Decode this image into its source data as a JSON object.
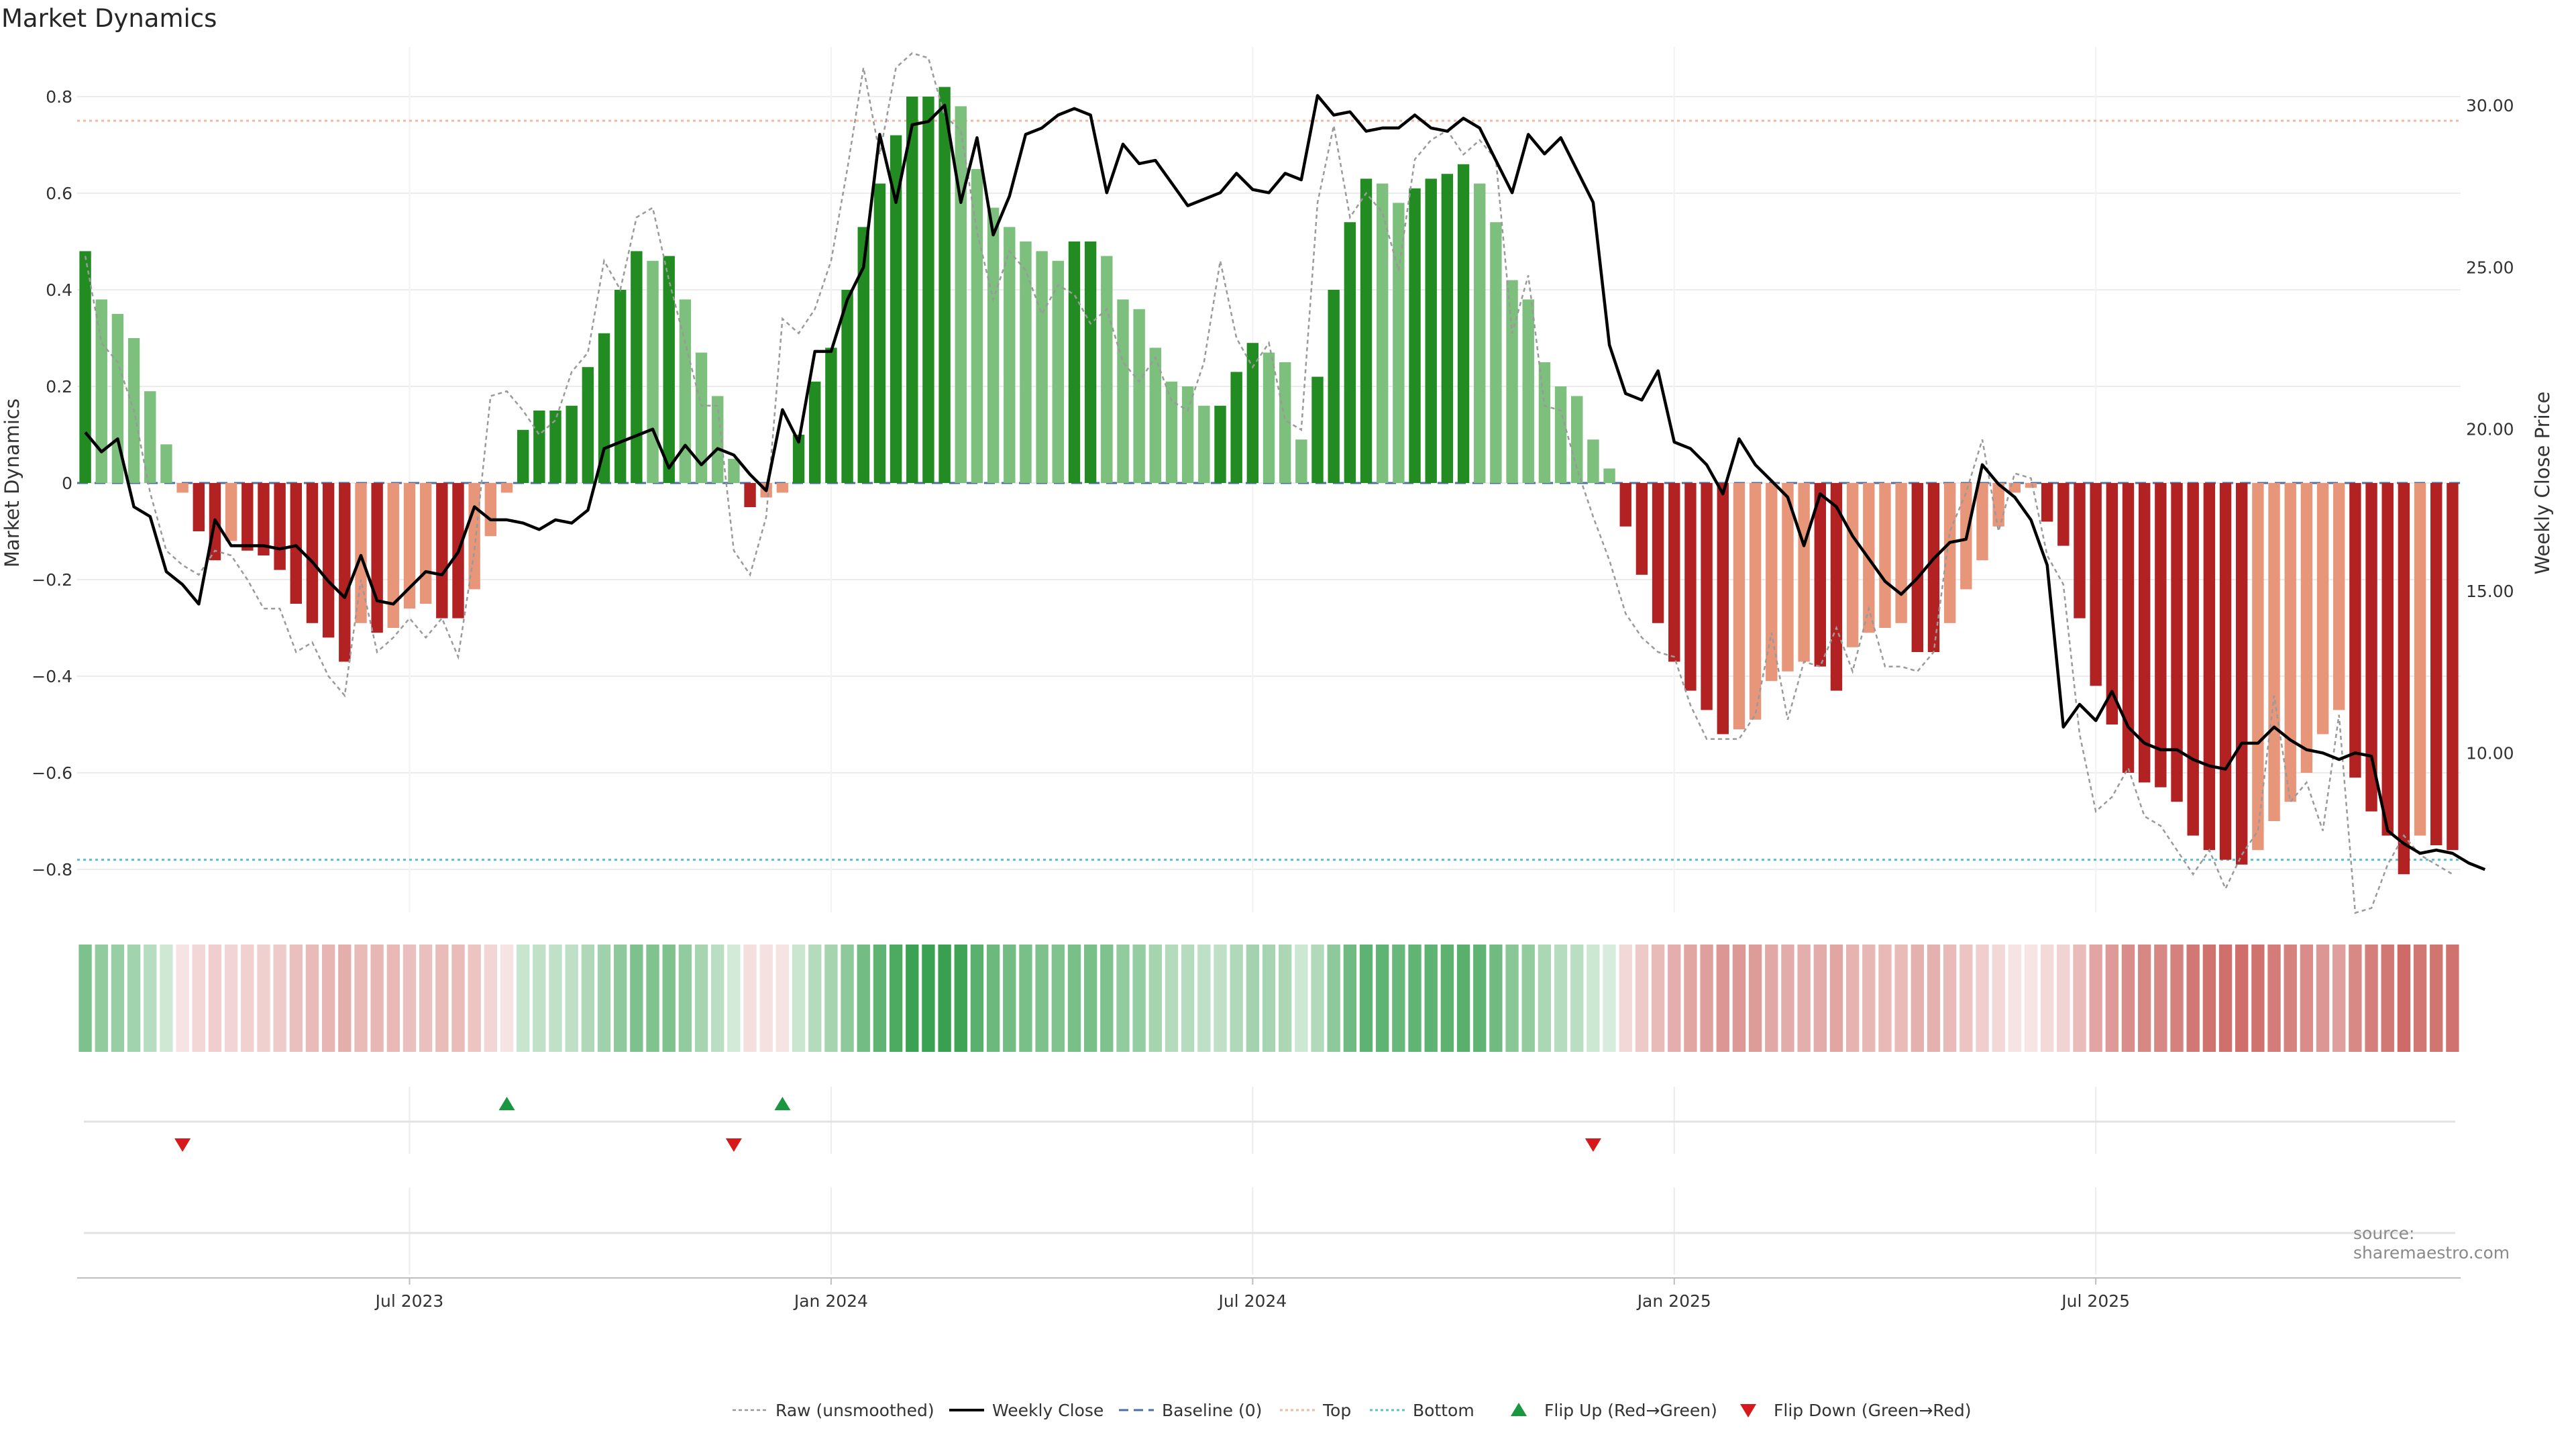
{
  "title": "Market Dynamics",
  "source": "source: sharemaestro.com",
  "chart_data": {
    "type": "bar",
    "title": "Market Dynamics",
    "ylabel_left": "Market Dynamics",
    "ylabel_right": "Weekly Close Price",
    "ylim_left": [
      -0.88,
      0.9
    ],
    "ylim_right": [
      6.3,
      31.5
    ],
    "left_ticks": [
      0.8,
      0.6,
      0.4,
      0.2,
      0,
      -0.2,
      -0.4,
      -0.6,
      -0.8
    ],
    "left_tick_labels": [
      "0.8",
      "0.6",
      "0.4",
      "0.2",
      "0",
      "−0.2",
      "−0.4",
      "−0.6",
      "−0.8"
    ],
    "right_ticks": [
      30,
      25,
      20,
      15,
      10
    ],
    "right_tick_labels": [
      "30.00",
      "25.00",
      "20.00",
      "15.00",
      "10.00"
    ],
    "x_ticks": [
      {
        "week": 20,
        "label": "Jul 2023"
      },
      {
        "week": 46,
        "label": "Jan 2024"
      },
      {
        "week": 72,
        "label": "Jul 2024"
      },
      {
        "week": 98,
        "label": "Jan 2025"
      },
      {
        "week": 124,
        "label": "Jul 2025"
      }
    ],
    "top_level": 0.75,
    "bottom_level": -0.78,
    "baseline": 0,
    "dynamics": [
      0.48,
      0.38,
      0.35,
      0.3,
      0.19,
      0.08,
      -0.02,
      -0.1,
      -0.16,
      -0.12,
      -0.14,
      -0.15,
      -0.18,
      -0.25,
      -0.29,
      -0.32,
      -0.37,
      -0.29,
      -0.31,
      -0.3,
      -0.26,
      -0.25,
      -0.28,
      -0.28,
      -0.22,
      -0.11,
      -0.02,
      0.11,
      0.15,
      0.15,
      0.16,
      0.24,
      0.31,
      0.4,
      0.48,
      0.46,
      0.47,
      0.38,
      0.27,
      0.18,
      0.05,
      -0.05,
      -0.03,
      -0.02,
      0.1,
      0.21,
      0.28,
      0.4,
      0.53,
      0.62,
      0.72,
      0.8,
      0.8,
      0.82,
      0.78,
      0.65,
      0.57,
      0.53,
      0.5,
      0.48,
      0.46,
      0.5,
      0.5,
      0.47,
      0.38,
      0.36,
      0.28,
      0.21,
      0.2,
      0.16,
      0.16,
      0.23,
      0.29,
      0.27,
      0.25,
      0.09,
      0.22,
      0.4,
      0.54,
      0.63,
      0.62,
      0.58,
      0.61,
      0.63,
      0.64,
      0.66,
      0.62,
      0.54,
      0.42,
      0.38,
      0.25,
      0.2,
      0.18,
      0.09,
      0.03,
      -0.09,
      -0.19,
      -0.29,
      -0.37,
      -0.43,
      -0.47,
      -0.52,
      -0.51,
      -0.49,
      -0.41,
      -0.39,
      -0.37,
      -0.38,
      -0.43,
      -0.34,
      -0.31,
      -0.3,
      -0.29,
      -0.35,
      -0.35,
      -0.29,
      -0.22,
      -0.16,
      -0.09,
      -0.02,
      -0.01,
      -0.08,
      -0.13,
      -0.28,
      -0.42,
      -0.5,
      -0.6,
      -0.62,
      -0.63,
      -0.66,
      -0.73,
      -0.76,
      -0.78,
      -0.79,
      -0.76,
      -0.7,
      -0.66,
      -0.6,
      -0.52,
      -0.47,
      -0.61,
      -0.68,
      -0.73,
      -0.81,
      -0.73,
      -0.75,
      -0.76
    ],
    "raw": [
      0.47,
      0.29,
      0.25,
      0.15,
      -0.02,
      -0.14,
      -0.17,
      -0.19,
      -0.14,
      -0.15,
      -0.2,
      -0.26,
      -0.26,
      -0.35,
      -0.33,
      -0.4,
      -0.44,
      -0.2,
      -0.35,
      -0.32,
      -0.28,
      -0.32,
      -0.28,
      -0.36,
      -0.14,
      0.18,
      0.19,
      0.15,
      0.1,
      0.13,
      0.23,
      0.27,
      0.46,
      0.4,
      0.55,
      0.57,
      0.42,
      0.29,
      0.16,
      0.16,
      -0.14,
      -0.19,
      -0.07,
      0.34,
      0.31,
      0.36,
      0.46,
      0.65,
      0.86,
      0.68,
      0.86,
      0.89,
      0.88,
      0.76,
      0.73,
      0.52,
      0.38,
      0.48,
      0.44,
      0.35,
      0.41,
      0.39,
      0.33,
      0.36,
      0.25,
      0.21,
      0.26,
      0.17,
      0.15,
      0.25,
      0.46,
      0.3,
      0.24,
      0.29,
      0.13,
      0.11,
      0.58,
      0.74,
      0.55,
      0.6,
      0.56,
      0.44,
      0.67,
      0.71,
      0.73,
      0.68,
      0.71,
      0.67,
      0.31,
      0.43,
      0.16,
      0.15,
      0.03,
      -0.07,
      -0.16,
      -0.27,
      -0.32,
      -0.35,
      -0.36,
      -0.46,
      -0.53,
      -0.53,
      -0.53,
      -0.48,
      -0.31,
      -0.49,
      -0.37,
      -0.38,
      -0.3,
      -0.39,
      -0.26,
      -0.38,
      -0.38,
      -0.39,
      -0.35,
      -0.1,
      -0.02,
      0.09,
      -0.1,
      0.02,
      0.01,
      -0.15,
      -0.21,
      -0.52,
      -0.68,
      -0.65,
      -0.59,
      -0.69,
      -0.71,
      -0.76,
      -0.81,
      -0.76,
      -0.84,
      -0.77,
      -0.72,
      -0.44,
      -0.66,
      -0.62,
      -0.72,
      -0.48,
      -0.89,
      -0.88,
      -0.79,
      -0.73,
      -0.77,
      -0.79,
      -0.81
    ],
    "weekly_close": [
      19.9,
      19.3,
      19.7,
      17.6,
      17.3,
      15.6,
      15.2,
      14.6,
      17.2,
      16.4,
      16.4,
      16.4,
      16.3,
      16.4,
      15.9,
      15.3,
      14.8,
      16.1,
      14.7,
      14.6,
      15.1,
      15.6,
      15.5,
      16.2,
      17.6,
      17.2,
      17.2,
      17.1,
      16.9,
      17.2,
      17.1,
      17.5,
      19.4,
      19.6,
      19.8,
      20.0,
      18.8,
      19.5,
      18.9,
      19.4,
      19.2,
      18.6,
      18.1,
      20.6,
      19.6,
      22.4,
      22.4,
      24.0,
      25.0,
      29.1,
      27.0,
      29.4,
      29.5,
      30.0,
      27.0,
      29.0,
      26.0,
      27.2,
      29.1,
      29.3,
      29.7,
      29.9,
      29.7,
      27.3,
      28.8,
      28.2,
      28.3,
      27.6,
      26.9,
      27.1,
      27.3,
      27.9,
      27.4,
      27.3,
      27.9,
      27.7,
      30.3,
      29.7,
      29.8,
      29.2,
      29.3,
      29.3,
      29.7,
      29.3,
      29.2,
      29.6,
      29.3,
      28.3,
      27.3,
      29.1,
      28.5,
      29.0,
      28.0,
      27.0,
      22.6,
      21.1,
      20.9,
      21.8,
      19.6,
      19.4,
      18.9,
      18.0,
      19.7,
      18.9,
      18.4,
      17.9,
      16.4,
      18.0,
      17.6,
      16.7,
      16.0,
      15.3,
      14.9,
      15.4,
      16.0,
      16.5,
      16.6,
      18.9,
      18.3,
      17.9,
      17.2,
      15.8,
      10.8,
      11.5,
      11.0,
      11.9,
      10.8,
      10.3,
      10.1,
      10.1,
      9.8,
      9.6,
      9.5,
      10.3,
      10.3,
      10.8,
      10.4,
      10.1,
      10.0,
      9.8,
      10.0,
      9.9,
      7.6,
      7.2,
      6.9,
      7.0,
      6.9,
      6.6,
      6.4
    ],
    "flip_up_weeks": [
      26,
      43
    ],
    "flip_down_weeks": [
      6,
      40,
      93
    ],
    "legend": [
      {
        "label": "Raw (unsmoothed)",
        "style": "dotted-gray"
      },
      {
        "label": "Weekly Close",
        "style": "solid-black"
      },
      {
        "label": "Baseline (0)",
        "style": "dashed-blue"
      },
      {
        "label": "Top",
        "style": "dotted-salmon"
      },
      {
        "label": "Bottom",
        "style": "dotted-cyan"
      },
      {
        "label": "Flip Up (Red→Green)",
        "style": "triangle-up-green"
      },
      {
        "label": "Flip Down (Green→Red)",
        "style": "triangle-down-red"
      }
    ],
    "colors": {
      "strong_green": "#228b22",
      "soft_green": "#7dbf7d",
      "strong_red": "#b22222",
      "soft_red": "#e8967a",
      "raw_line": "#9a9a9a",
      "close_line": "#000000",
      "baseline": "#4b6fa5",
      "top_line": "#f0b8a0",
      "bottom_line": "#5bc0c8",
      "flip_up": "#1a9641",
      "flip_down": "#d7191c"
    }
  }
}
